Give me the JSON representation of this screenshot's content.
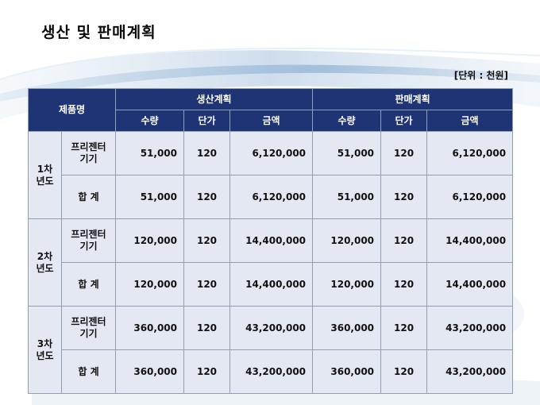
{
  "title": "생산 및 판매계획",
  "unit": "[단위 : 천원]",
  "table": {
    "product_header": "제품명",
    "groups": [
      "생산계획",
      "판매계획"
    ],
    "subheaders": [
      "수량",
      "단가",
      "금액",
      "수량",
      "단가",
      "금액"
    ],
    "years": [
      {
        "label_line1": "1차",
        "label_line2": "년도",
        "rows": [
          {
            "product_line1": "프리젠터",
            "product_line2": "기기",
            "cells": [
              "51,000",
              "120",
              "6,120,000",
              "51,000",
              "120",
              "6,120,000"
            ]
          },
          {
            "product_line1": "합  계",
            "product_line2": "",
            "cells": [
              "51,000",
              "120",
              "6,120,000",
              "51,000",
              "120",
              "6,120,000"
            ]
          }
        ]
      },
      {
        "label_line1": "2차",
        "label_line2": "년도",
        "rows": [
          {
            "product_line1": "프리젠터",
            "product_line2": "기기",
            "cells": [
              "120,000",
              "120",
              "14,400,000",
              "120,000",
              "120",
              "14,400,000"
            ]
          },
          {
            "product_line1": "합  계",
            "product_line2": "",
            "cells": [
              "120,000",
              "120",
              "14,400,000",
              "120,000",
              "120",
              "14,400,000"
            ]
          }
        ]
      },
      {
        "label_line1": "3차",
        "label_line2": "년도",
        "rows": [
          {
            "product_line1": "프리젠터",
            "product_line2": "기기",
            "cells": [
              "360,000",
              "120",
              "43,200,000",
              "360,000",
              "120",
              "43,200,000"
            ]
          },
          {
            "product_line1": "합  계",
            "product_line2": "",
            "cells": [
              "360,000",
              "120",
              "43,200,000",
              "360,000",
              "120",
              "43,200,000"
            ]
          }
        ]
      }
    ]
  }
}
